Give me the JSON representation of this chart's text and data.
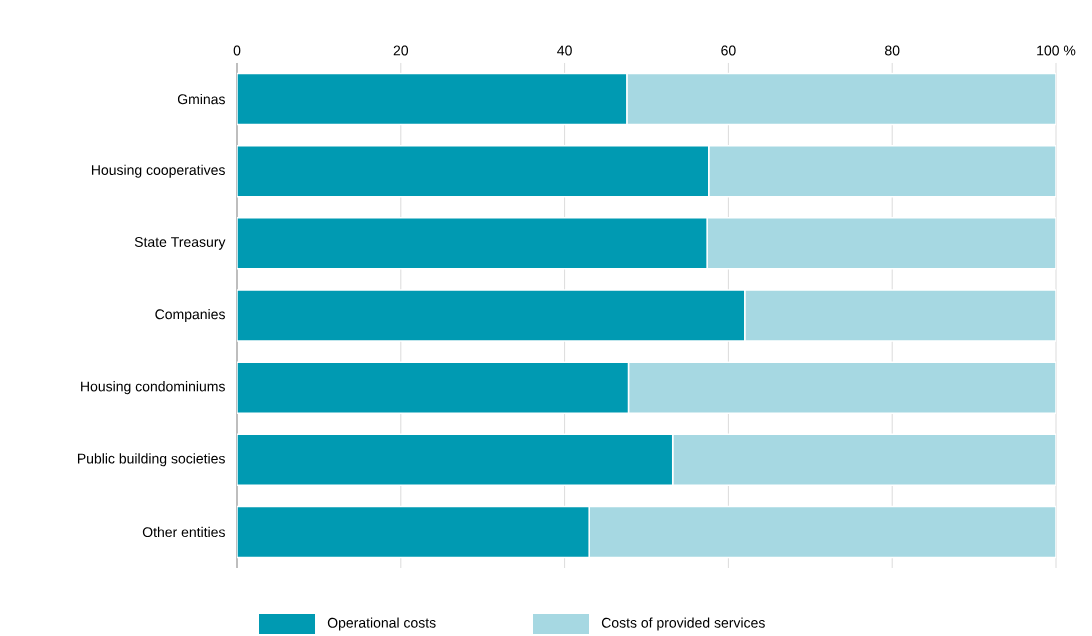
{
  "chart_data": {
    "type": "bar",
    "orientation": "horizontal",
    "stacked": true,
    "categories": [
      "Gminas",
      "Housing cooperatives",
      "State Treasury",
      "Companies",
      "Housing condominiums",
      "Public building societies",
      "Other entities"
    ],
    "series": [
      {
        "name": "Operational costs",
        "color": "#009ab2",
        "values": [
          47.6,
          57.6,
          57.4,
          62.0,
          47.8,
          53.2,
          43.0
        ]
      },
      {
        "name": "Costs of provided services",
        "color": "#a6d8e2",
        "values": [
          52.4,
          42.4,
          42.6,
          38.0,
          52.2,
          46.8,
          57.0
        ]
      }
    ],
    "xlim": [
      0,
      100
    ],
    "xticks": [
      0,
      20,
      40,
      60,
      80,
      {
        "value": 100,
        "label": "100 %"
      }
    ],
    "grid": "x",
    "legend": "bottom"
  }
}
